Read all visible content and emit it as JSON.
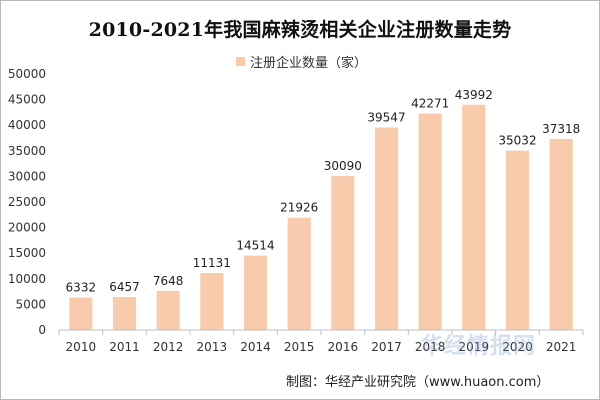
{
  "chart_data": {
    "type": "bar",
    "title": "2010-2021年我国麻辣烫相关企业注册数量走势",
    "xlabel": "",
    "ylabel": "",
    "categories": [
      "2010",
      "2011",
      "2012",
      "2013",
      "2014",
      "2015",
      "2016",
      "2017",
      "2018",
      "2019",
      "2020",
      "2021"
    ],
    "series": [
      {
        "name": "注册企业数量（家）",
        "values": [
          6332,
          6457,
          7648,
          11131,
          14514,
          21926,
          30090,
          39547,
          42271,
          43992,
          35032,
          37318
        ],
        "color": "#f8cbad"
      }
    ],
    "ylim": [
      0,
      50000
    ],
    "yticks": [
      "0",
      "5000",
      "10000",
      "15000",
      "20000",
      "25000",
      "30000",
      "35000",
      "40000",
      "45000",
      "50000"
    ],
    "grid": false,
    "data_labels": true,
    "legend_position": "top-center"
  },
  "watermark": "华经情报网",
  "source_note": "制图：华经产业研究院（www.huaon.com）"
}
